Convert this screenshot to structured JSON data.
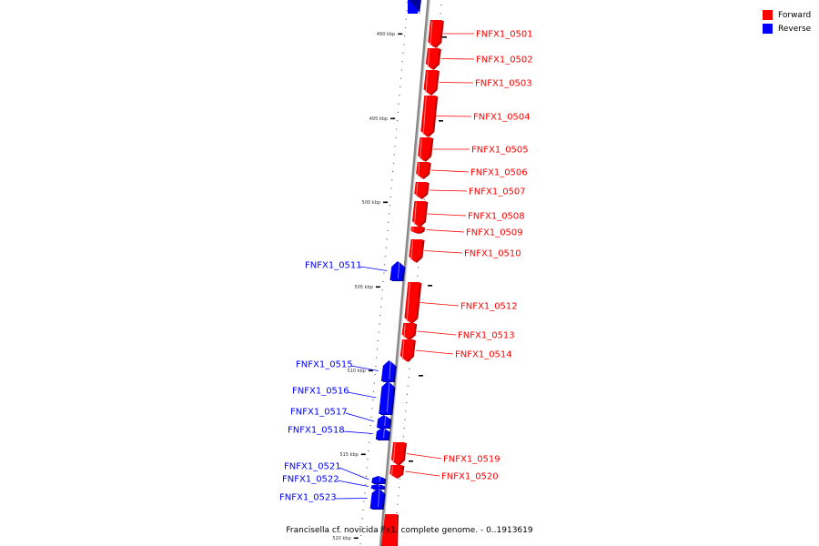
{
  "legend": {
    "forward_label": "Forward",
    "reverse_label": "Reverse",
    "forward_color": "#ff0000",
    "reverse_color": "#0000ff"
  },
  "caption": "Francisella cf. novicida Fx1, complete genome. - 0..1913619",
  "colors": {
    "forward": "#ff0000",
    "forward_dark": "#b80000",
    "forward_light": "#ff8080",
    "reverse": "#0000ff",
    "reverse_dark": "#00009a",
    "reverse_light": "#7878ff",
    "backbone": "#888888"
  },
  "ticks": [
    {
      "label": "490 kbp"
    },
    {
      "label": "495 kbp"
    },
    {
      "label": "500 kbp"
    },
    {
      "label": "505 kbp"
    },
    {
      "label": "510 kbp"
    },
    {
      "label": "515 kbp"
    },
    {
      "label": "520 kbp"
    }
  ],
  "genes": [
    {
      "name": "FNFX1_0501",
      "strand": "forward"
    },
    {
      "name": "FNFX1_0502",
      "strand": "forward"
    },
    {
      "name": "FNFX1_0503",
      "strand": "forward"
    },
    {
      "name": "FNFX1_0504",
      "strand": "forward"
    },
    {
      "name": "FNFX1_0505",
      "strand": "forward"
    },
    {
      "name": "FNFX1_0506",
      "strand": "forward"
    },
    {
      "name": "FNFX1_0507",
      "strand": "forward"
    },
    {
      "name": "FNFX1_0508",
      "strand": "forward"
    },
    {
      "name": "FNFX1_0509",
      "strand": "forward"
    },
    {
      "name": "FNFX1_0510",
      "strand": "forward"
    },
    {
      "name": "FNFX1_0511",
      "strand": "reverse"
    },
    {
      "name": "FNFX1_0512",
      "strand": "forward"
    },
    {
      "name": "FNFX1_0513",
      "strand": "forward"
    },
    {
      "name": "FNFX1_0514",
      "strand": "forward"
    },
    {
      "name": "FNFX1_0515",
      "strand": "reverse"
    },
    {
      "name": "FNFX1_0516",
      "strand": "reverse"
    },
    {
      "name": "FNFX1_0517",
      "strand": "reverse"
    },
    {
      "name": "FNFX1_0518",
      "strand": "reverse"
    },
    {
      "name": "FNFX1_0519",
      "strand": "forward"
    },
    {
      "name": "FNFX1_0520",
      "strand": "forward"
    },
    {
      "name": "FNFX1_0521",
      "strand": "reverse"
    },
    {
      "name": "FNFX1_0522",
      "strand": "reverse"
    },
    {
      "name": "FNFX1_0523",
      "strand": "reverse"
    }
  ]
}
